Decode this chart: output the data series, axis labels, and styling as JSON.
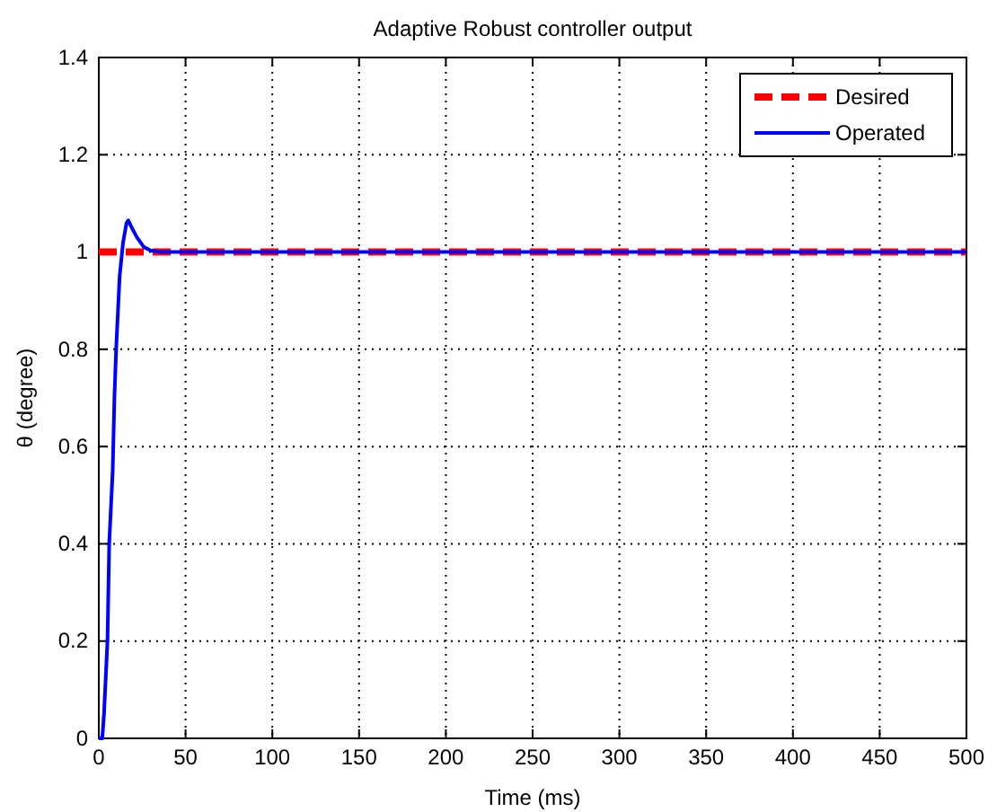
{
  "chart_data": {
    "type": "line",
    "title": "Adaptive Robust controller output",
    "xlabel": "Time (ms)",
    "ylabel": "θ (degree)",
    "xlim": [
      0,
      500
    ],
    "xticks": [
      0,
      50,
      100,
      150,
      200,
      250,
      300,
      350,
      400,
      450,
      500
    ],
    "ylim": [
      0,
      1.4
    ],
    "yticks": [
      0,
      0.2,
      0.4,
      0.6,
      0.8,
      1,
      1.2,
      1.4
    ],
    "grid": true,
    "legend": "top right",
    "series": [
      {
        "name": "Desired",
        "color": "#ff0000",
        "line_style": "dashed",
        "x": [
          0,
          500
        ],
        "values": [
          1,
          1
        ]
      },
      {
        "name": "Operated",
        "color": "#0000ff",
        "line_style": "solid",
        "x": [
          0,
          2,
          3,
          5,
          6,
          8,
          9,
          10,
          12,
          14,
          16,
          17,
          19,
          22,
          26,
          30,
          35,
          500
        ],
        "values": [
          0,
          0,
          0.05,
          0.2,
          0.4,
          0.55,
          0.7,
          0.8,
          0.95,
          1.02,
          1.06,
          1.065,
          1.05,
          1.03,
          1.01,
          1.003,
          1,
          1
        ]
      }
    ]
  }
}
